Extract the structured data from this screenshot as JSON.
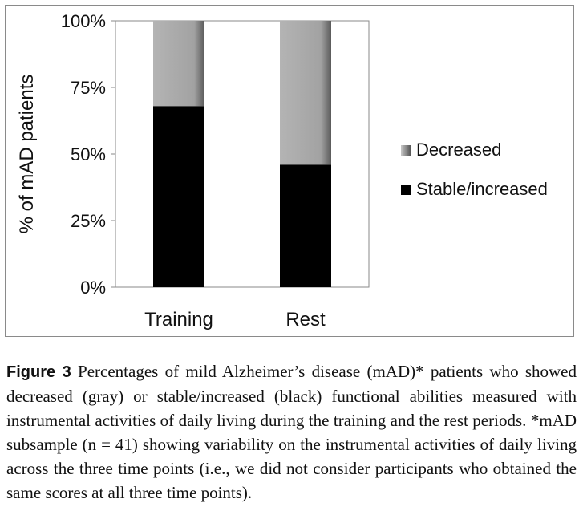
{
  "chart_data": {
    "type": "bar",
    "stacked": true,
    "title": "",
    "xlabel": "",
    "ylabel": "% of mAD patients",
    "ylim": [
      0,
      100
    ],
    "yticks": [
      "0%",
      "25%",
      "50%",
      "75%",
      "100%"
    ],
    "ytick_values": [
      0,
      25,
      50,
      75,
      100
    ],
    "categories": [
      "Training",
      "Rest"
    ],
    "series": [
      {
        "name": "Stable/increased",
        "values": [
          68,
          46
        ],
        "color": "#000000"
      },
      {
        "name": "Decreased",
        "values": [
          32,
          54
        ],
        "color": "#a6a6a6"
      }
    ],
    "legend": {
      "placement": "right",
      "order": [
        "Decreased",
        "Stable/increased"
      ]
    },
    "grid": false
  },
  "caption": {
    "label": "Figure 3",
    "text": "Percentages of mild Alzheimer’s disease (mAD)* patients who showed decreased (gray) or stable/increased (black) functional abilities measured with instrumental activities of daily living during the training and the rest periods. *mAD subsample (n = 41) showing variability on the instrumental activities of daily living across the three time points (i.e., we did not consider participants who obtained the same scores at all three time points)."
  }
}
